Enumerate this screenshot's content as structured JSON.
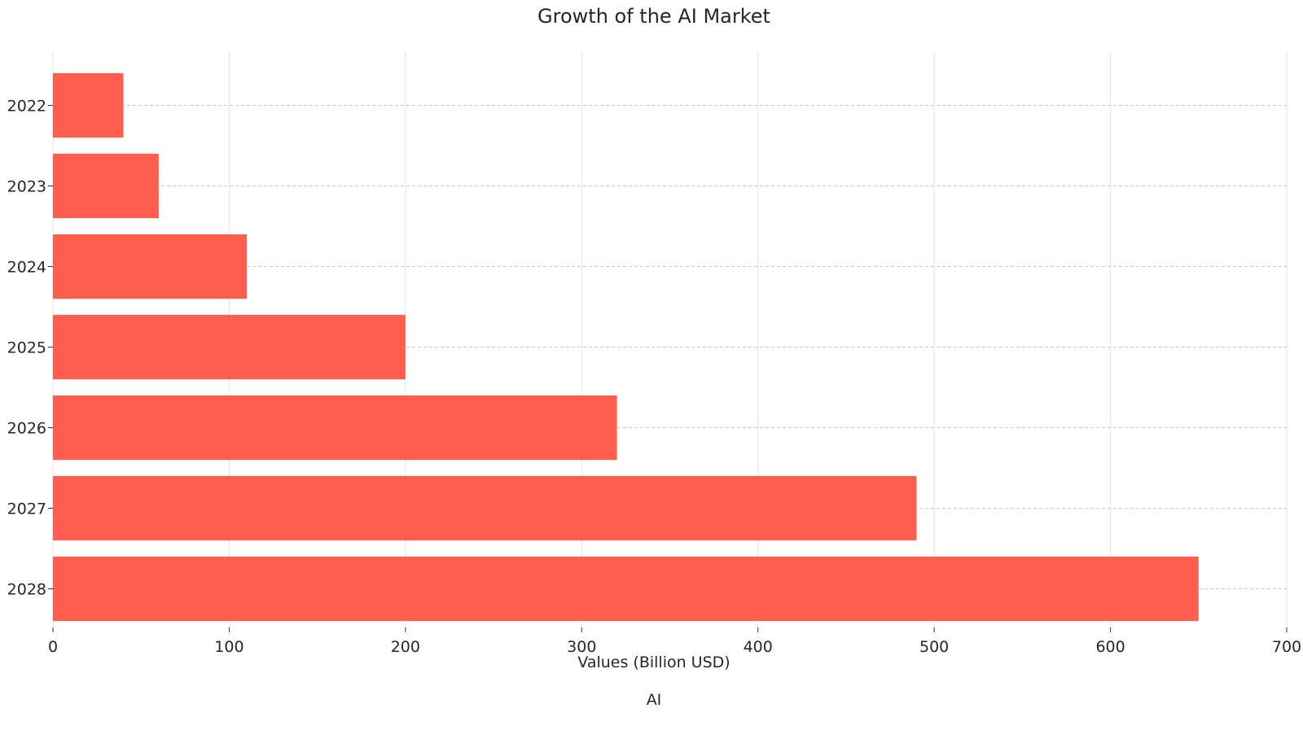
{
  "chart_data": {
    "type": "bar",
    "orientation": "horizontal",
    "title": "Growth of the AI Market",
    "xlabel": "Values (Billion USD)",
    "ylabel": "",
    "categories": [
      "2022",
      "2023",
      "2024",
      "2025",
      "2026",
      "2027",
      "2028"
    ],
    "series": [
      {
        "name": "AI",
        "values": [
          40,
          60,
          110,
          200,
          320,
          490,
          650
        ],
        "color": "#ff5d4d"
      }
    ],
    "xlim": [
      0,
      700
    ],
    "xticks": [
      0,
      100,
      200,
      300,
      400,
      500,
      600,
      700
    ],
    "grid": true,
    "legend": "bottom-center"
  }
}
